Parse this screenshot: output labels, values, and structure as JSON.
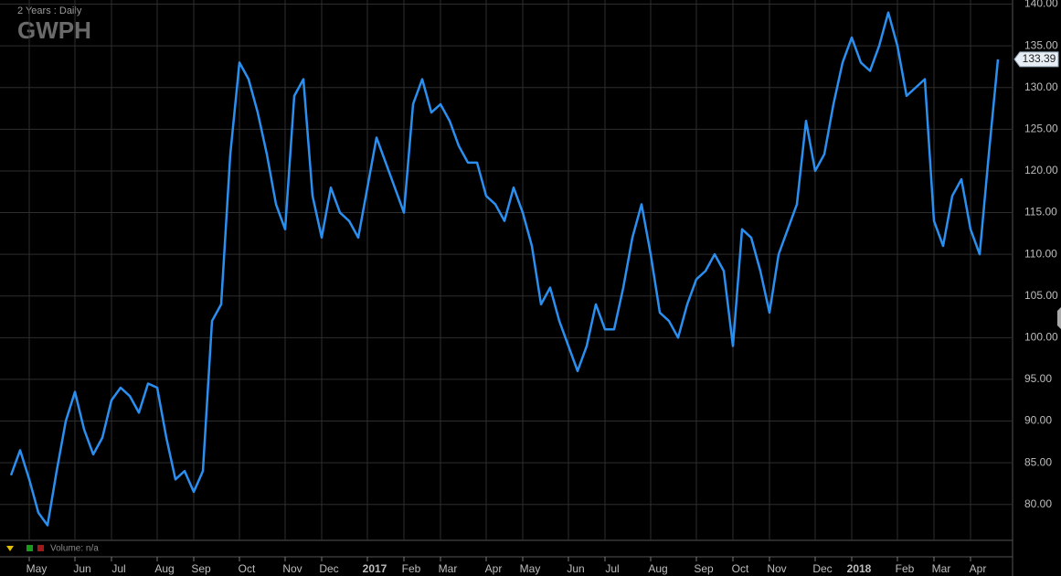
{
  "chart_data": {
    "type": "line",
    "title": "GWPH",
    "subtitle": "2 Years : Daily",
    "volume_label": "Volume: n/a",
    "categories": [
      null,
      null,
      "May",
      null,
      null,
      null,
      null,
      "Jun",
      null,
      null,
      null,
      "Jul",
      null,
      null,
      null,
      null,
      "Aug",
      null,
      null,
      null,
      "Sep",
      null,
      null,
      null,
      null,
      "Oct",
      null,
      null,
      null,
      null,
      "Nov",
      null,
      null,
      null,
      "Dec",
      null,
      null,
      null,
      null,
      "2017",
      null,
      null,
      null,
      "Feb",
      null,
      null,
      null,
      "Mar",
      null,
      null,
      null,
      null,
      "Apr",
      null,
      null,
      null,
      "May",
      null,
      null,
      null,
      null,
      "Jun",
      null,
      null,
      null,
      "Jul",
      null,
      null,
      null,
      null,
      "Aug",
      null,
      null,
      null,
      null,
      "Sep",
      null,
      null,
      null,
      "Oct",
      null,
      null,
      null,
      "Nov",
      null,
      null,
      null,
      null,
      "Dec",
      null,
      null,
      null,
      "2018",
      null,
      null,
      null,
      null,
      "Feb",
      null,
      null,
      null,
      "Mar",
      null,
      null,
      null,
      "Apr",
      null,
      null,
      null
    ],
    "values": [
      83.5,
      86.5,
      83,
      79,
      77.5,
      84,
      90,
      93.5,
      89,
      86,
      88,
      92.5,
      94,
      93,
      91,
      94.5,
      94,
      88,
      83,
      84,
      81.5,
      84,
      102,
      104,
      122,
      133,
      131,
      127,
      122,
      116,
      113,
      129,
      131,
      117,
      112,
      118,
      115,
      114,
      112,
      118,
      124,
      121,
      118,
      115,
      128,
      131,
      127,
      128,
      126,
      123,
      121,
      121,
      117,
      116,
      114,
      118,
      115,
      111,
      104,
      106,
      102,
      99,
      96,
      99,
      104,
      101,
      101,
      106,
      112,
      116,
      110,
      103,
      102,
      100,
      104,
      107,
      108,
      110,
      108,
      99,
      113,
      112,
      108,
      103,
      110,
      113,
      116,
      126,
      120,
      122,
      128,
      133,
      136,
      133,
      132,
      135,
      139,
      135,
      129,
      130,
      131,
      114,
      111,
      117,
      119,
      113,
      110,
      122,
      133.39
    ],
    "color": "#2b8ff0",
    "ylim": [
      75.8,
      140.5
    ],
    "yticks": [
      {
        "value": 80,
        "label": "80.00"
      },
      {
        "value": 85,
        "label": "85.00"
      },
      {
        "value": 90,
        "label": "90.00"
      },
      {
        "value": 95,
        "label": "95.00"
      },
      {
        "value": 100,
        "label": "100.00"
      },
      {
        "value": 105,
        "label": "105.00"
      },
      {
        "value": 110,
        "label": "110.00"
      },
      {
        "value": 115,
        "label": "115.00"
      },
      {
        "value": 120,
        "label": "120.00"
      },
      {
        "value": 125,
        "label": "125.00"
      },
      {
        "value": 130,
        "label": "130.00"
      },
      {
        "value": 135,
        "label": "135.00"
      },
      {
        "value": 140,
        "label": "140.00"
      }
    ],
    "grid": true
  }
}
